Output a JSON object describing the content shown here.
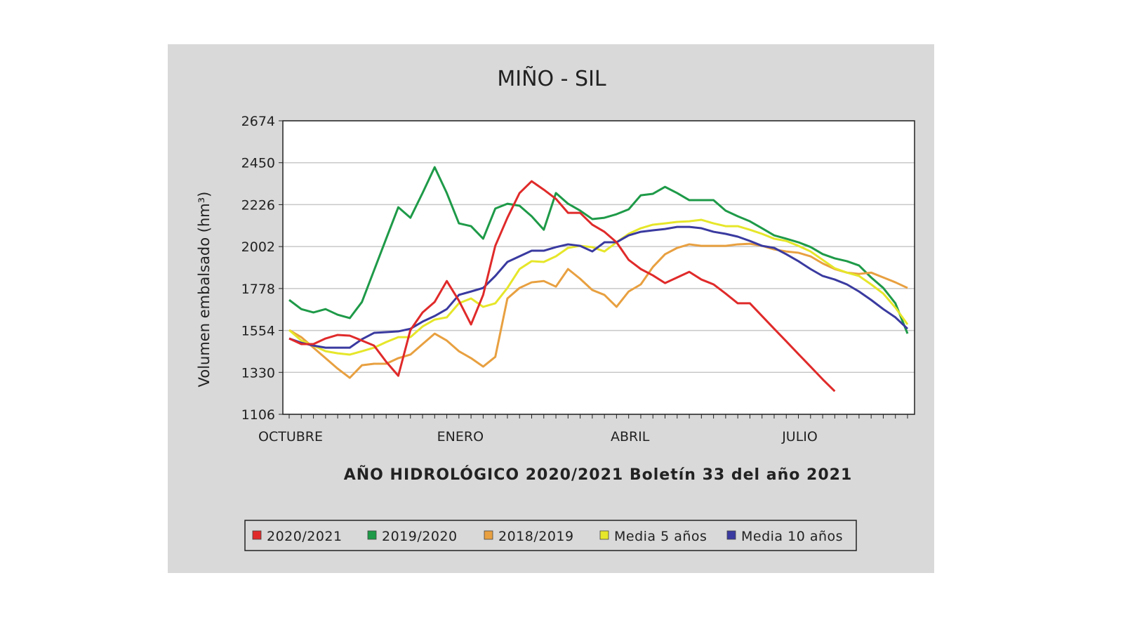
{
  "chart_data": {
    "type": "line",
    "title": "MIÑO - SIL",
    "xlabel": "AÑO HIDROLÓGICO 2020/2021 Boletín 33 del año 2021",
    "ylabel": "Volumen embalsado (hm³)",
    "ylim": [
      1106,
      2674
    ],
    "yticks": [
      1106,
      1330,
      1554,
      1778,
      2002,
      2226,
      2450,
      2674
    ],
    "x_weeks": 52,
    "xtick_labels": [
      {
        "label": "OCTUBRE",
        "week": 0
      },
      {
        "label": "ENERO",
        "week": 14
      },
      {
        "label": "ABRIL",
        "week": 28
      },
      {
        "label": "JULIO",
        "week": 42
      }
    ],
    "grid": true,
    "legend_position": "bottom",
    "series": [
      {
        "name": "2019/2020",
        "color": "#1e9a48",
        "values": [
          1717,
          1668,
          1650,
          1668,
          1638,
          1620,
          1706,
          1875,
          2044,
          2212,
          2156,
          2288,
          2426,
          2288,
          2126,
          2111,
          2044,
          2205,
          2231,
          2220,
          2164,
          2092,
          2288,
          2231,
          2194,
          2149,
          2156,
          2175,
          2201,
          2276,
          2284,
          2321,
          2288,
          2250,
          2250,
          2250,
          2194,
          2164,
          2137,
          2100,
          2062,
          2044,
          2025,
          2000,
          1962,
          1939,
          1924,
          1901,
          1837,
          1781,
          1699,
          1537
        ]
      },
      {
        "name": "2018/2019",
        "color": "#e8a040",
        "values": [
          1556,
          1518,
          1462,
          1406,
          1350,
          1301,
          1368,
          1376,
          1376,
          1406,
          1425,
          1481,
          1537,
          1500,
          1443,
          1406,
          1361,
          1413,
          1725,
          1781,
          1811,
          1818,
          1788,
          1882,
          1830,
          1770,
          1744,
          1680,
          1762,
          1800,
          1893,
          1961,
          1995,
          2014,
          2006,
          2006,
          2006,
          2014,
          2017,
          2006,
          1987,
          1976,
          1969,
          1950,
          1912,
          1882,
          1863,
          1856,
          1863,
          1837,
          1811,
          1781
        ]
      },
      {
        "name": "Media 5 años",
        "color": "#e6e62a",
        "values": [
          1556,
          1500,
          1473,
          1443,
          1432,
          1425,
          1443,
          1462,
          1492,
          1518,
          1518,
          1575,
          1612,
          1624,
          1699,
          1725,
          1680,
          1699,
          1781,
          1882,
          1924,
          1920,
          1950,
          1995,
          2006,
          1999,
          1976,
          2025,
          2070,
          2100,
          2119,
          2126,
          2134,
          2137,
          2145,
          2126,
          2111,
          2111,
          2092,
          2070,
          2044,
          2032,
          2006,
          1976,
          1931,
          1886,
          1863,
          1845,
          1800,
          1751,
          1676,
          1586
        ]
      },
      {
        "name": "Media 10 años",
        "color": "#3a3aa0",
        "values": [
          1511,
          1488,
          1473,
          1462,
          1462,
          1462,
          1507,
          1541,
          1545,
          1549,
          1563,
          1601,
          1631,
          1668,
          1744,
          1762,
          1781,
          1845,
          1920,
          1950,
          1980,
          1980,
          1999,
          2014,
          2006,
          1976,
          2025,
          2025,
          2062,
          2081,
          2089,
          2096,
          2107,
          2107,
          2100,
          2081,
          2070,
          2055,
          2032,
          2006,
          1995,
          1961,
          1924,
          1882,
          1845,
          1826,
          1800,
          1762,
          1717,
          1668,
          1624,
          1563
        ]
      },
      {
        "name": "2020/2021",
        "color": "#e02a2a",
        "values": [
          1511,
          1481,
          1481,
          1511,
          1530,
          1526,
          1500,
          1473,
          1387,
          1312,
          1556,
          1650,
          1706,
          1818,
          1713,
          1586,
          1744,
          2006,
          2156,
          2288,
          2351,
          2306,
          2257,
          2182,
          2182,
          2119,
          2081,
          2025,
          1931,
          1882,
          1848,
          1807,
          1837,
          1867,
          1826,
          1800,
          1751,
          1699,
          1699,
          1631,
          1563,
          1496,
          1428,
          1361,
          1293,
          1229
        ]
      }
    ],
    "legend_order": [
      "2020/2021",
      "2019/2020",
      "2018/2019",
      "Media 5 años",
      "Media 10 años"
    ]
  }
}
